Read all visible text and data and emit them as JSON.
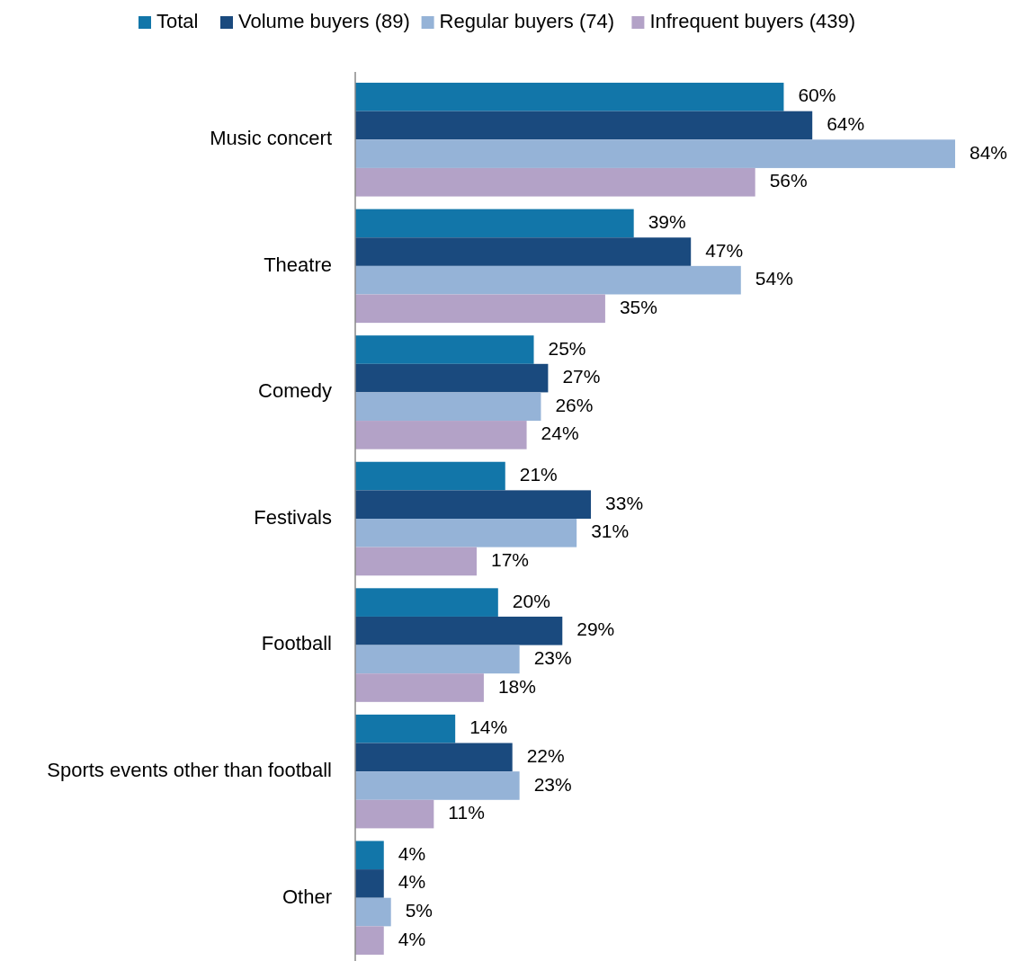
{
  "chart_data": {
    "type": "bar",
    "orientation": "horizontal",
    "legend": "top",
    "categories": [
      "Music concert",
      "Theatre",
      "Comedy",
      "Festivals",
      "Football",
      "Sports events other than football",
      "Other"
    ],
    "series": [
      {
        "name": "Total",
        "color": "#1276a9",
        "values": [
          60,
          39,
          25,
          21,
          20,
          14,
          4
        ],
        "value_labels": [
          "60%",
          "39%",
          "25%",
          "21%",
          "20%",
          "14%",
          "4%"
        ]
      },
      {
        "name": "Volume buyers (89)",
        "color": "#1a4a7e",
        "values": [
          64,
          47,
          27,
          33,
          29,
          22,
          4
        ],
        "value_labels": [
          "64%",
          "47%",
          "27%",
          "33%",
          "29%",
          "22%",
          "4%"
        ]
      },
      {
        "name": "Regular buyers (74)",
        "color": "#95b3d7",
        "values": [
          84,
          54,
          26,
          31,
          23,
          23,
          5
        ],
        "value_labels": [
          "84%",
          "54%",
          "26%",
          "31%",
          "23%",
          "23%",
          "5%"
        ]
      },
      {
        "name": "Infrequent buyers (439)",
        "color": "#b3a2c7",
        "values": [
          56,
          35,
          24,
          17,
          18,
          11,
          4
        ],
        "value_labels": [
          "56%",
          "35%",
          "24%",
          "17%",
          "18%",
          "11%",
          "4%"
        ]
      }
    ]
  }
}
